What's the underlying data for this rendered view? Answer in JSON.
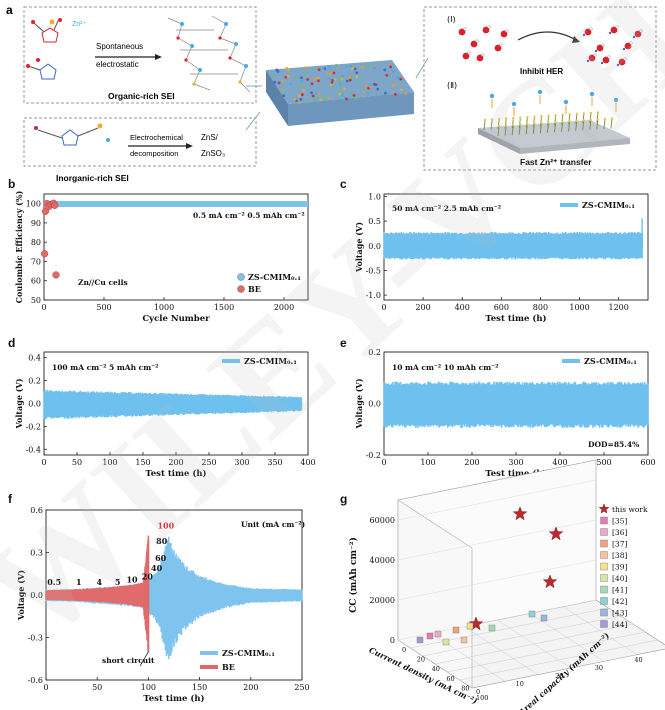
{
  "watermark": "WILEY-VCH",
  "panel_a": {
    "letter": "a",
    "organic_label": "Organic-rich SEI",
    "inorganic_label": "Inorganic-rich SEI",
    "spont_line1": "Spontaneous",
    "spont_line2": "electrostatic",
    "electro_line1": "Electrochemical",
    "electro_line2": "decomposition",
    "product_line1": "ZnS/",
    "product_line2": "ZnSO₃",
    "roman1": "(Ⅰ)",
    "roman2": "(Ⅱ)",
    "inhibit": "Inhibit HER",
    "fast": "Fast Zn²⁺ transfer",
    "colors": {
      "zn": "#4aa8e8",
      "water_o": "#d8232a",
      "so3": "#e8b030",
      "ring_n": "#3a64c8"
    }
  },
  "chart_data": [
    {
      "panel": "b",
      "type": "scatter",
      "xlabel": "Cycle Number",
      "ylabel": "Coulombic Efficiency (%)",
      "xlim": [
        0,
        2200
      ],
      "ylim": [
        50,
        105
      ],
      "xticks": [
        0,
        500,
        1000,
        1500,
        2000
      ],
      "yticks": [
        50,
        60,
        70,
        80,
        90,
        100
      ],
      "annotation_left": "Zn//Cu cells",
      "annotation_right": "0.5 mA cm⁻² 0.5 mAh cm⁻²",
      "legend": [
        "ZS-CMIM₀.₁",
        "BE"
      ],
      "series": [
        {
          "name": "ZS-CMIM₀.₁",
          "color": "#7fc3ea",
          "x_range": [
            0,
            2200
          ],
          "y": 99.8
        },
        {
          "name": "BE",
          "color": "#e06a6a",
          "points": [
            [
              5,
              74
            ],
            [
              12,
              96
            ],
            [
              25,
              100
            ],
            [
              40,
              98.5
            ],
            [
              60,
              99.6
            ],
            [
              80,
              100.2
            ],
            [
              90,
              99.1
            ],
            [
              100,
              63
            ]
          ]
        }
      ]
    },
    {
      "panel": "c",
      "type": "area",
      "xlabel": "Test time (h)",
      "ylabel": "Voltage (V)",
      "xlim": [
        0,
        1350
      ],
      "ylim": [
        -1.1,
        1.05
      ],
      "xticks": [
        0,
        200,
        400,
        600,
        800,
        1000,
        1200
      ],
      "yticks": [
        -1.0,
        -0.5,
        0.0,
        0.5,
        1.0
      ],
      "annotation": "50 mA cm⁻² 2.5 mAh cm⁻²",
      "legend": [
        "ZS-CMIM₀.₁"
      ],
      "series": [
        {
          "name": "ZS-CMIM₀.₁",
          "color": "#6ec0ee",
          "x_end": 1320,
          "upper": 0.28,
          "lower": -0.28
        }
      ]
    },
    {
      "panel": "d",
      "type": "area",
      "xlabel": "Test time (h)",
      "ylabel": "Voltage (V)",
      "xlim": [
        0,
        400
      ],
      "ylim": [
        -0.45,
        0.45
      ],
      "xticks": [
        0,
        50,
        100,
        150,
        200,
        250,
        300,
        350,
        400
      ],
      "yticks": [
        -0.4,
        -0.2,
        0.0,
        0.2,
        0.4
      ],
      "annotation": "100 mA cm⁻² 5 mAh cm⁻²",
      "legend": [
        "ZS-CMIM₀.₁"
      ],
      "series": [
        {
          "name": "ZS-CMIM₀.₁",
          "color": "#6ec0ee",
          "x_end": 390,
          "upper_start": 0.12,
          "upper_end": 0.06,
          "lower_start": -0.14,
          "lower_end": -0.07
        }
      ]
    },
    {
      "panel": "e",
      "type": "area",
      "xlabel": "Test time (h)",
      "ylabel": "Voltage (V)",
      "xlim": [
        0,
        600
      ],
      "ylim": [
        -0.2,
        0.2
      ],
      "xticks": [
        0,
        100,
        200,
        300,
        400,
        500,
        600
      ],
      "yticks": [
        -0.2,
        0.0,
        0.2
      ],
      "annotation": "10 mA cm⁻² 10 mAh cm⁻²",
      "annotation2": "DOD=85.4%",
      "legend": [
        "ZS-CMIM₀.₁"
      ],
      "series": [
        {
          "name": "ZS-CMIM₀.₁",
          "color": "#6ec0ee",
          "x_end": 600,
          "upper": 0.085,
          "lower": -0.095
        }
      ]
    },
    {
      "panel": "f",
      "type": "area",
      "xlabel": "Test time (h)",
      "ylabel": "Voltage (V)",
      "xlim": [
        0,
        250
      ],
      "ylim": [
        -0.6,
        0.6
      ],
      "xticks": [
        0,
        50,
        100,
        150,
        200,
        250
      ],
      "yticks": [
        -0.6,
        -0.3,
        0.0,
        0.3,
        0.6
      ],
      "unit_label": "Unit (mA cm⁻²)",
      "short_circuit": "short circuit",
      "legend": [
        "ZS-CMIM₀.₁",
        "BE"
      ],
      "rate_labels": [
        {
          "text": "0.5",
          "x": 8,
          "y": 0.07
        },
        {
          "text": "1",
          "x": 32,
          "y": 0.07
        },
        {
          "text": "4",
          "x": 52,
          "y": 0.07
        },
        {
          "text": "5",
          "x": 70,
          "y": 0.07
        },
        {
          "text": "10",
          "x": 84,
          "y": 0.09
        },
        {
          "text": "20",
          "x": 99,
          "y": 0.11
        },
        {
          "text": "40",
          "x": 108,
          "y": 0.17
        },
        {
          "text": "60",
          "x": 112,
          "y": 0.24
        },
        {
          "text": "80",
          "x": 113,
          "y": 0.36
        },
        {
          "text": "100",
          "x": 117,
          "y": 0.47
        }
      ],
      "series": [
        {
          "name": "ZS-CMIM₀.₁",
          "color": "#7ec4ee",
          "envelope": [
            [
              0,
              0.04
            ],
            [
              20,
              0.04
            ],
            [
              40,
              0.05
            ],
            [
              60,
              0.06
            ],
            [
              80,
              0.07
            ],
            [
              95,
              0.08
            ],
            [
              100,
              0.12
            ],
            [
              105,
              0.14
            ],
            [
              110,
              0.2
            ],
            [
              115,
              0.3
            ],
            [
              120,
              0.45
            ],
            [
              125,
              0.32
            ],
            [
              135,
              0.22
            ],
            [
              150,
              0.14
            ],
            [
              175,
              0.08
            ],
            [
              200,
              0.05
            ],
            [
              250,
              0.04
            ]
          ],
          "lower_scale": 1.15
        },
        {
          "name": "BE",
          "color": "#e06a6a",
          "envelope": [
            [
              0,
              0.035
            ],
            [
              20,
              0.04
            ],
            [
              40,
              0.045
            ],
            [
              60,
              0.055
            ],
            [
              80,
              0.07
            ],
            [
              95,
              0.09
            ],
            [
              100,
              0.42
            ]
          ],
          "lower_end": -0.4
        }
      ]
    },
    {
      "panel": "g",
      "type": "scatter",
      "zlabel": "CC (mAh cm⁻²)",
      "xlabel": "Current density (mA cm⁻²)",
      "ylabel": "Areal capacity (mAh cm⁻²)",
      "zticks": [
        0,
        20000,
        40000,
        60000
      ],
      "legend": [
        {
          "name": "this work",
          "color": "#c0272d",
          "marker": "star"
        },
        {
          "name": "[35]",
          "color": "#e07fb0",
          "marker": "square"
        },
        {
          "name": "[36]",
          "color": "#e9a9c8",
          "marker": "square"
        },
        {
          "name": "[37]",
          "color": "#f1a27c",
          "marker": "square"
        },
        {
          "name": "[38]",
          "color": "#f4c2a0",
          "marker": "square"
        },
        {
          "name": "[39]",
          "color": "#f3e28a",
          "marker": "square"
        },
        {
          "name": "[40]",
          "color": "#d6e6a3",
          "marker": "square"
        },
        {
          "name": "[41]",
          "color": "#a6d9b8",
          "marker": "square"
        },
        {
          "name": "[42]",
          "color": "#8fcfd8",
          "marker": "square"
        },
        {
          "name": "[43]",
          "color": "#99b6dc",
          "marker": "square"
        },
        {
          "name": "[44]",
          "color": "#a79ad0",
          "marker": "square"
        }
      ],
      "stars_cc": [
        63000,
        56000,
        36000,
        6000
      ]
    }
  ]
}
